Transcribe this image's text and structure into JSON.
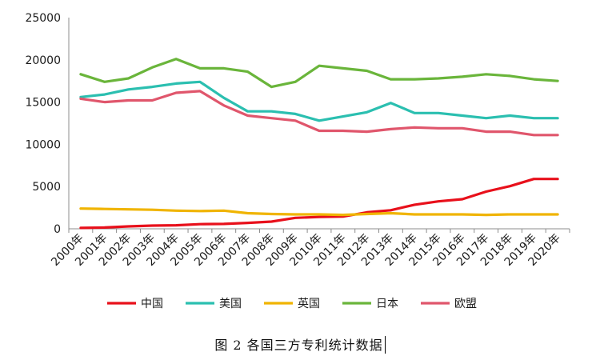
{
  "chart_data": {
    "type": "line",
    "title": "",
    "xlabel": "",
    "ylabel": "",
    "ylim": [
      0,
      25000
    ],
    "yticks": [
      0,
      5000,
      10000,
      15000,
      20000,
      25000
    ],
    "grid": false,
    "legend_position": "bottom",
    "categories": [
      "2000年",
      "2001年",
      "2002年",
      "2003年",
      "2004年",
      "2005年",
      "2006年",
      "2007年",
      "2008年",
      "2009年",
      "2010年",
      "2011年",
      "2012年",
      "2013年",
      "2014年",
      "2015年",
      "2016年",
      "2017年",
      "2018年",
      "2019年",
      "2020年"
    ],
    "series": [
      {
        "name": "中国",
        "color": "#e8101b",
        "values": [
          100,
          150,
          280,
          380,
          420,
          550,
          580,
          700,
          850,
          1300,
          1400,
          1450,
          1950,
          2200,
          2850,
          3250,
          3500,
          4400,
          5050,
          5900,
          5900
        ]
      },
      {
        "name": "美国",
        "color": "#2bbfb0",
        "values": [
          15600,
          15900,
          16500,
          16800,
          17200,
          17400,
          15500,
          13900,
          13900,
          13600,
          12800,
          13300,
          13800,
          14900,
          13700,
          13700,
          13400,
          13100,
          13400,
          13100,
          13100
        ]
      },
      {
        "name": "英国",
        "color": "#f0b400",
        "values": [
          2400,
          2350,
          2300,
          2250,
          2150,
          2100,
          2150,
          1850,
          1750,
          1700,
          1700,
          1650,
          1750,
          1850,
          1700,
          1700,
          1700,
          1650,
          1700,
          1700,
          1700
        ]
      },
      {
        "name": "日本",
        "color": "#6ab53b",
        "values": [
          18300,
          17400,
          17800,
          19100,
          20100,
          19000,
          19000,
          18600,
          16800,
          17400,
          19300,
          19000,
          18700,
          17700,
          17700,
          17800,
          18000,
          18300,
          18100,
          17700,
          17500
        ]
      },
      {
        "name": "欧盟",
        "color": "#e0566c",
        "values": [
          15400,
          15000,
          15200,
          15200,
          16100,
          16300,
          14600,
          13400,
          13100,
          12800,
          11600,
          11600,
          11500,
          11800,
          12000,
          11900,
          11900,
          11500,
          11500,
          11100,
          11100
        ]
      }
    ]
  },
  "caption": {
    "text": "图 2  各国三方专利统计数据"
  }
}
